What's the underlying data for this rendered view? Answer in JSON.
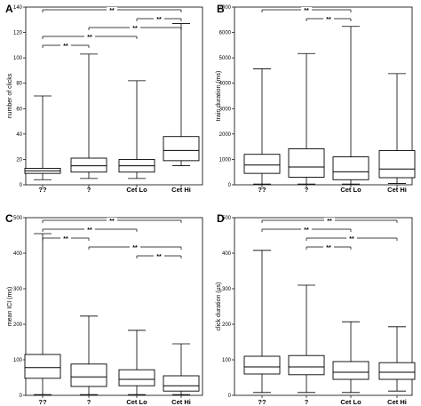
{
  "chart_data": [
    {
      "type": "box",
      "panel": "A",
      "ylabel": "number of clicks",
      "ylim": [
        0,
        140
      ],
      "yticks": [
        0,
        20,
        40,
        60,
        80,
        100,
        120,
        140
      ],
      "categories": [
        "??",
        "?",
        "Cet Lo",
        "Cet Hi"
      ],
      "boxes": [
        {
          "min": 4,
          "q1": 9,
          "median": 11,
          "q3": 13,
          "max": 70
        },
        {
          "min": 5,
          "q1": 10,
          "median": 15,
          "q3": 21,
          "max": 103
        },
        {
          "min": 5,
          "q1": 10,
          "median": 15,
          "q3": 20,
          "max": 82
        },
        {
          "min": 15,
          "q1": 19,
          "median": 27,
          "q3": 38,
          "max": 127
        }
      ],
      "significance": [
        {
          "from": 0,
          "to": 3,
          "label": "**"
        },
        {
          "from": 2,
          "to": 3,
          "label": "**"
        },
        {
          "from": 1,
          "to": 3,
          "label": "**"
        },
        {
          "from": 0,
          "to": 2,
          "label": "**"
        },
        {
          "from": 0,
          "to": 1,
          "label": "**"
        }
      ]
    },
    {
      "type": "box",
      "panel": "B",
      "ylabel": "train duration (ms)",
      "ylim": [
        0,
        7000
      ],
      "yticks": [
        0,
        1000,
        2000,
        3000,
        4000,
        5000,
        6000,
        7000
      ],
      "categories": [
        "??",
        "?",
        "Cet Lo",
        "Cet Hi"
      ],
      "boxes": [
        {
          "min": 30,
          "q1": 450,
          "median": 780,
          "q3": 1200,
          "max": 4570
        },
        {
          "min": 30,
          "q1": 300,
          "median": 700,
          "q3": 1420,
          "max": 5170
        },
        {
          "min": 30,
          "q1": 200,
          "median": 510,
          "q3": 1100,
          "max": 6240
        },
        {
          "min": 50,
          "q1": 280,
          "median": 620,
          "q3": 1350,
          "max": 4380
        }
      ],
      "significance": [
        {
          "from": 0,
          "to": 2,
          "label": "**"
        },
        {
          "from": 1,
          "to": 2,
          "label": "**"
        }
      ]
    },
    {
      "type": "box",
      "panel": "C",
      "ylabel": "mean ICI (ms)",
      "ylim": [
        0,
        500
      ],
      "yticks": [
        0,
        100,
        200,
        300,
        400,
        500
      ],
      "categories": [
        "??",
        "?",
        "Cet Lo",
        "Cet Hi"
      ],
      "boxes": [
        {
          "min": 2,
          "q1": 48,
          "median": 78,
          "q3": 115,
          "max": 455
        },
        {
          "min": 2,
          "q1": 25,
          "median": 52,
          "q3": 88,
          "max": 223
        },
        {
          "min": 2,
          "q1": 27,
          "median": 45,
          "q3": 72,
          "max": 183
        },
        {
          "min": 2,
          "q1": 12,
          "median": 27,
          "q3": 55,
          "max": 145
        }
      ],
      "significance": [
        {
          "from": 0,
          "to": 3,
          "label": "**"
        },
        {
          "from": 0,
          "to": 2,
          "label": "**"
        },
        {
          "from": 0,
          "to": 1,
          "label": "**"
        },
        {
          "from": 1,
          "to": 3,
          "label": "**"
        },
        {
          "from": 2,
          "to": 3,
          "label": "**"
        }
      ]
    },
    {
      "type": "box",
      "panel": "D",
      "ylabel": "click duration (μs)",
      "ylim": [
        0,
        500
      ],
      "yticks": [
        0,
        100,
        200,
        300,
        400,
        500
      ],
      "categories": [
        "??",
        "?",
        "Cet Lo",
        "Cet Hi"
      ],
      "boxes": [
        {
          "min": 8,
          "q1": 60,
          "median": 80,
          "q3": 110,
          "max": 408
        },
        {
          "min": 8,
          "q1": 58,
          "median": 80,
          "q3": 112,
          "max": 310
        },
        {
          "min": 8,
          "q1": 45,
          "median": 65,
          "q3": 95,
          "max": 207
        },
        {
          "min": 12,
          "q1": 45,
          "median": 65,
          "q3": 92,
          "max": 193
        }
      ],
      "significance": [
        {
          "from": 0,
          "to": 3,
          "label": "**"
        },
        {
          "from": 0,
          "to": 2,
          "label": "**"
        },
        {
          "from": 1,
          "to": 3,
          "label": "**"
        },
        {
          "from": 1,
          "to": 2,
          "label": "**"
        }
      ]
    }
  ]
}
